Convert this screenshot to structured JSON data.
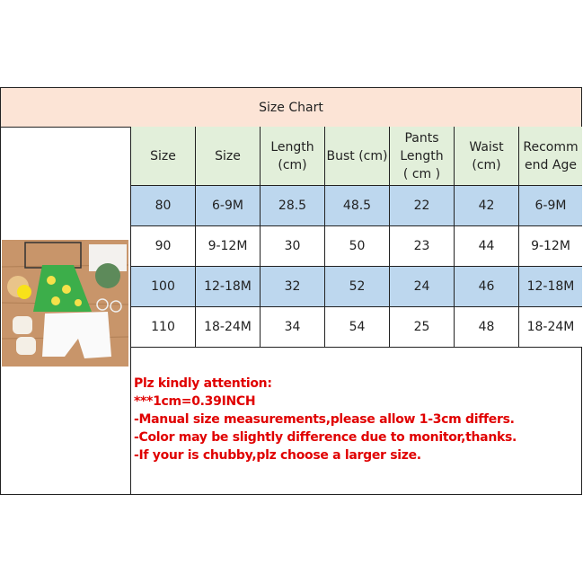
{
  "title": "Size Chart",
  "headers": [
    "Size",
    "Size",
    "Length\n(cm)",
    "Bust (cm)",
    "Pants\nLength\n( cm )",
    "Waist\n(cm)",
    "Recomm\nend Age"
  ],
  "rows": [
    [
      "80",
      "6-9M",
      "28.5",
      "48.5",
      "22",
      "42",
      "6-9M"
    ],
    [
      "90",
      "9-12M",
      "30",
      "50",
      "23",
      "44",
      "9-12M"
    ],
    [
      "100",
      "12-18M",
      "32",
      "52",
      "24",
      "46",
      "12-18M"
    ],
    [
      "110",
      "18-24M",
      "34",
      "54",
      "25",
      "48",
      "18-24M"
    ]
  ],
  "notes": [
    "Plz kindly attention:",
    "***1cm=0.39INCH",
    "-Manual size measurements,please allow 1-3cm differs.",
    "-Color may be slightly difference due to monitor,thanks.",
    "-If your is chubby,plz choose a larger size."
  ],
  "colors": {
    "title_bg": "#fce4d6",
    "header_bg": "#e2efda",
    "row_blue": "#bdd7ee",
    "notes_text": "#e00000"
  }
}
